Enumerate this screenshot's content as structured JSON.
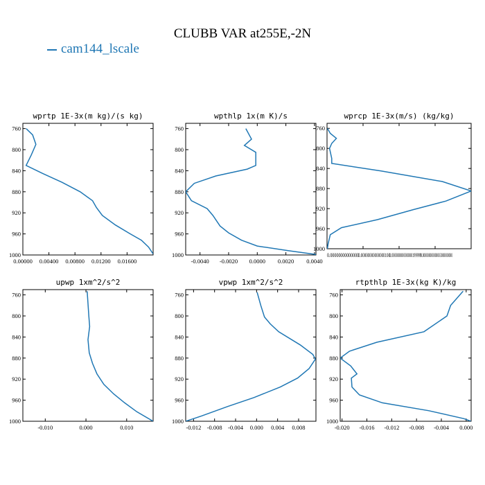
{
  "figure": {
    "title": "CLUBB VAR at255E,-2N",
    "legend": [
      {
        "label": "cam144_lscale",
        "color": "#1f77b4"
      }
    ]
  },
  "chart_data": [
    {
      "type": "line",
      "title": "wprtp  1E-3x(m kg)/(s kg)",
      "xlim": [
        0,
        0.02
      ],
      "ylim": [
        1000,
        750
      ],
      "xticks": [
        0,
        0.004,
        0.008,
        0.012,
        0.016
      ],
      "xtick_labels": [
        "0.00000",
        "0.00400",
        "0.00800",
        "0.01200",
        "0.01600"
      ],
      "yticks": [
        760,
        800,
        840,
        880,
        920,
        960,
        1000
      ],
      "series": [
        {
          "color": "#1f77b4",
          "points": [
            [
              0.0005,
              760
            ],
            [
              0.0015,
              772
            ],
            [
              0.002,
              790
            ],
            [
              0.0013,
              810
            ],
            [
              0.0005,
              830
            ],
            [
              0.003,
              845
            ],
            [
              0.006,
              862
            ],
            [
              0.0088,
              880
            ],
            [
              0.0107,
              897
            ],
            [
              0.0113,
              910
            ],
            [
              0.0122,
              925
            ],
            [
              0.0142,
              943
            ],
            [
              0.0165,
              960
            ],
            [
              0.0182,
              972
            ],
            [
              0.0193,
              985
            ],
            [
              0.02,
              998
            ]
          ]
        }
      ]
    },
    {
      "type": "line",
      "title": "wpthlp  1x(m K)/s",
      "xlim": [
        -0.005,
        0.0041
      ],
      "ylim": [
        1000,
        750
      ],
      "xticks": [
        -0.004,
        -0.002,
        0,
        0.002,
        0.004
      ],
      "xtick_labels": [
        "-0.0040",
        "-0.0020",
        "0.0000",
        "0.0020",
        "0.0040"
      ],
      "yticks": [
        760,
        800,
        840,
        880,
        920,
        960,
        1000
      ],
      "series": [
        {
          "color": "#1f77b4",
          "points": [
            [
              -0.0008,
              760
            ],
            [
              -0.0004,
              780
            ],
            [
              -0.0009,
              792
            ],
            [
              -0.0001,
              805
            ],
            [
              -0.0001,
              830
            ],
            [
              -0.0007,
              837
            ],
            [
              -0.0029,
              850
            ],
            [
              -0.0044,
              864
            ],
            [
              -0.005,
              880
            ],
            [
              -0.0046,
              897
            ],
            [
              -0.0035,
              912
            ],
            [
              -0.0031,
              925
            ],
            [
              -0.0026,
              945
            ],
            [
              -0.002,
              958
            ],
            [
              -0.0011,
              972
            ],
            [
              0,
              983
            ],
            [
              0.0022,
              992
            ],
            [
              0.0041,
              999
            ]
          ]
        }
      ]
    },
    {
      "type": "line",
      "title": "wprcp  1E-3x(m/s) (kg/kg)",
      "xlim": [
        0,
        4e-15
      ],
      "ylim": [
        1000,
        750
      ],
      "xticks": [
        0,
        1e-15,
        2e-15,
        3e-15
      ],
      "xtick_labels": [
        "0.00000000000000",
        "0.00000000000000100",
        "0.00000000000000199999",
        "0.000000000000003000000000"
      ],
      "yticks": [
        760,
        800,
        840,
        880,
        920,
        960,
        1000
      ],
      "series": [
        {
          "color": "#1f77b4",
          "points": [
            [
              1e-17,
              760
            ],
            [
              9e-17,
              770
            ],
            [
              2.6e-16,
              780
            ],
            [
              1.3e-16,
              790
            ],
            [
              7e-17,
              800
            ],
            [
              1.3e-16,
              820
            ],
            [
              1.3e-16,
              830
            ],
            [
              1.5e-15,
              845
            ],
            [
              3.2e-15,
              866
            ],
            [
              4e-15,
              885
            ],
            [
              3.3e-15,
              905
            ],
            [
              2.4e-15,
              922
            ],
            [
              1.4e-15,
              942
            ],
            [
              4e-16,
              958
            ],
            [
              9e-17,
              972
            ],
            [
              3e-17,
              990
            ],
            [
              1e-17,
              1000
            ]
          ]
        }
      ]
    },
    {
      "type": "line",
      "title": "upwp  1xm^2/s^2",
      "xlim": [
        -0.0155,
        0.0165
      ],
      "ylim": [
        1000,
        750
      ],
      "xticks": [
        -0.01,
        0,
        0.01
      ],
      "xtick_labels": [
        "-0.010",
        "0.000",
        "0.010"
      ],
      "yticks": [
        760,
        800,
        840,
        880,
        920,
        960,
        1000
      ],
      "series": [
        {
          "color": "#1f77b4",
          "points": [
            [
              0.0003,
              753
            ],
            [
              0.0007,
              800
            ],
            [
              0.0009,
              820
            ],
            [
              0.0005,
              845
            ],
            [
              0.0008,
              870
            ],
            [
              0.0016,
              890
            ],
            [
              0.0027,
              910
            ],
            [
              0.0044,
              930
            ],
            [
              0.0068,
              948
            ],
            [
              0.0095,
              965
            ],
            [
              0.0125,
              982
            ],
            [
              0.0165,
              1000
            ]
          ]
        }
      ]
    },
    {
      "type": "line",
      "title": "vpwp  1xm^2/s^2",
      "xlim": [
        -0.0135,
        0.0113
      ],
      "ylim": [
        1000,
        750
      ],
      "xticks": [
        -0.012,
        -0.008,
        -0.004,
        0,
        0.004,
        0.008
      ],
      "xtick_labels": [
        "-0.012",
        "-0.008",
        "-0.004",
        "0.000",
        "0.004",
        "0.008"
      ],
      "yticks": [
        760,
        800,
        840,
        880,
        920,
        960,
        1000
      ],
      "series": [
        {
          "color": "#1f77b4",
          "points": [
            [
              0.0001,
              755
            ],
            [
              0.0008,
              780
            ],
            [
              0.0015,
              802
            ],
            [
              0.0026,
              815
            ],
            [
              0.0042,
              830
            ],
            [
              0.0083,
              855
            ],
            [
              0.0107,
              873
            ],
            [
              0.0112,
              882
            ],
            [
              0.01,
              900
            ],
            [
              0.0078,
              918
            ],
            [
              0.0045,
              935
            ],
            [
              -0.0005,
              955
            ],
            [
              -0.0055,
              972
            ],
            [
              -0.0105,
              990
            ],
            [
              -0.0135,
              1000
            ]
          ]
        }
      ]
    },
    {
      "type": "line",
      "title": "rtpthlp  1E-3x(kg K)/kg",
      "xlim": [
        -0.0203,
        0.0008
      ],
      "ylim": [
        1000,
        750
      ],
      "xticks": [
        -0.02,
        -0.016,
        -0.012,
        -0.008,
        -0.004,
        0
      ],
      "xtick_labels": [
        "-0.020",
        "-0.016",
        "-0.012",
        "-0.008",
        "-0.004",
        "0.000"
      ],
      "yticks": [
        760,
        800,
        840,
        880,
        920,
        960,
        1000
      ],
      "series": [
        {
          "color": "#1f77b4",
          "points": [
            [
              -0.0005,
              753
            ],
            [
              -0.0025,
              780
            ],
            [
              -0.0031,
              800
            ],
            [
              -0.0068,
              830
            ],
            [
              -0.0144,
              850
            ],
            [
              -0.0188,
              867
            ],
            [
              -0.0203,
              880
            ],
            [
              -0.0186,
              895
            ],
            [
              -0.0176,
              910
            ],
            [
              -0.0185,
              918
            ],
            [
              -0.0184,
              935
            ],
            [
              -0.0172,
              950
            ],
            [
              -0.0135,
              965
            ],
            [
              -0.006,
              980
            ],
            [
              -0.0004,
              995
            ],
            [
              0.0008,
              1000
            ]
          ]
        }
      ]
    }
  ]
}
